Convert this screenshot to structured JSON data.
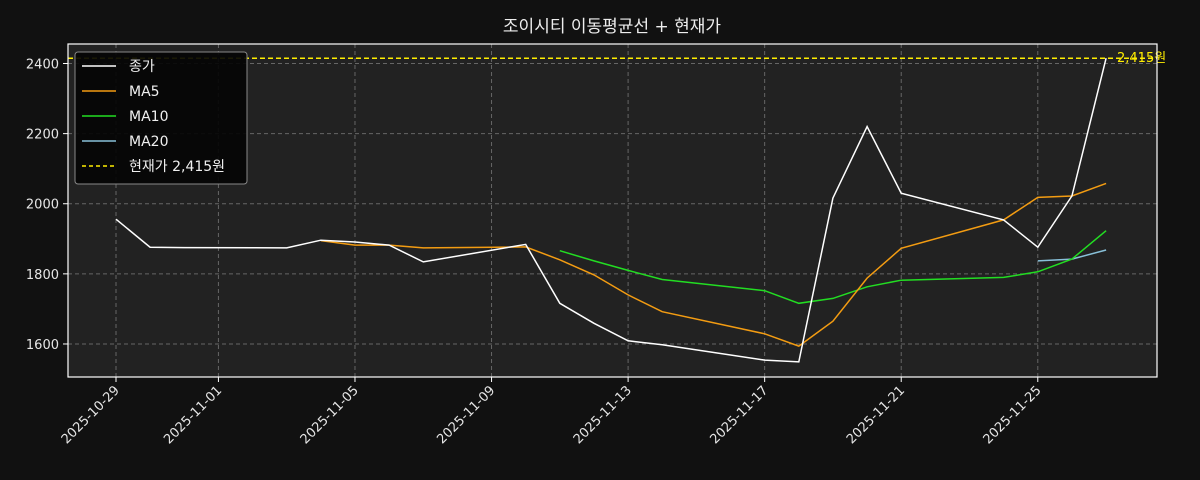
{
  "chart_data": {
    "type": "line",
    "title": "조이시티 이동평균선 + 현재가",
    "xlabel": "",
    "ylabel": "",
    "ylim": [
      1505,
      2455
    ],
    "y_ticks": [
      1600,
      1800,
      2000,
      2200,
      2400
    ],
    "x_ticks": [
      "2025-10-29",
      "2025-11-01",
      "2025-11-05",
      "2025-11-09",
      "2025-11-13",
      "2025-11-17",
      "2025-11-21",
      "2025-11-25"
    ],
    "x_range": [
      "2025-10-27",
      "2025-11-28"
    ],
    "grid": true,
    "legend_position": "upper left",
    "x": [
      "2025-10-29",
      "2025-10-30",
      "2025-10-31",
      "2025-11-03",
      "2025-11-04",
      "2025-11-05",
      "2025-11-06",
      "2025-11-07",
      "2025-11-10",
      "2025-11-11",
      "2025-11-12",
      "2025-11-13",
      "2025-11-14",
      "2025-11-17",
      "2025-11-18",
      "2025-11-19",
      "2025-11-20",
      "2025-11-21",
      "2025-11-24",
      "2025-11-25",
      "2025-11-26",
      "2025-11-27"
    ],
    "series": [
      {
        "name": "종가",
        "color": "#ffffff",
        "style": "solid",
        "values": [
          1956,
          1876,
          1875,
          1874,
          1896,
          1891,
          1882,
          1834,
          1884,
          1716,
          1659,
          1609,
          1598,
          1554,
          1549,
          2016,
          2220,
          2030,
          1954,
          1876,
          2022,
          2415
        ]
      },
      {
        "name": "MA5",
        "color": "#f39c12",
        "style": "solid",
        "values": [
          null,
          null,
          null,
          null,
          1895,
          1882,
          1882,
          1874,
          1877,
          1840,
          1797,
          1740,
          1692,
          1629,
          1594,
          1665,
          1788,
          1873,
          1954,
          2018,
          2022,
          2058
        ]
      },
      {
        "name": "MA10",
        "color": "#22dd22",
        "style": "solid",
        "values": [
          null,
          null,
          null,
          null,
          null,
          null,
          null,
          null,
          null,
          1866,
          1837,
          1810,
          1784,
          1752,
          1716,
          1730,
          1763,
          1782,
          1790,
          1806,
          1842,
          1923
        ]
      },
      {
        "name": "MA20",
        "color": "#88c0d8",
        "style": "solid",
        "values": [
          null,
          null,
          null,
          null,
          null,
          null,
          null,
          null,
          null,
          null,
          null,
          null,
          null,
          null,
          null,
          null,
          null,
          null,
          null,
          1837,
          1842,
          1868
        ]
      }
    ],
    "hlines": [
      {
        "name": "현재가 2,415원",
        "value": 2415,
        "color": "#ffee00",
        "style": "dashed",
        "annotation": "2,415원"
      }
    ]
  },
  "legend": {
    "items": [
      {
        "label": "종가",
        "color": "#ffffff",
        "dashed": false
      },
      {
        "label": "MA5",
        "color": "#f39c12",
        "dashed": false
      },
      {
        "label": "MA10",
        "color": "#22dd22",
        "dashed": false
      },
      {
        "label": "MA20",
        "color": "#88c0d8",
        "dashed": false
      },
      {
        "label": "현재가 2,415원",
        "color": "#ffee00",
        "dashed": true
      }
    ]
  },
  "colors": {
    "background": "#111111",
    "plot_background": "#222222",
    "grid": "#666666",
    "axis": "#ffffff",
    "text": "#e6e6e6"
  }
}
